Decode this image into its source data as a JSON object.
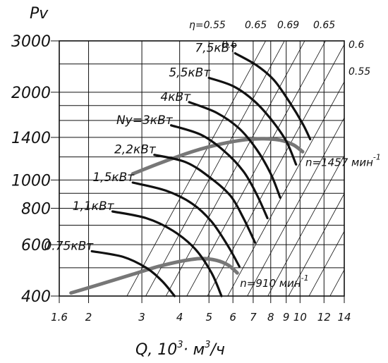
{
  "chart_data": {
    "type": "line",
    "title": "",
    "ylabel": "Pv",
    "xlabel": "Q, 10³· м³/ч",
    "xlabel_parts": {
      "q": "Q, 10",
      "exp": "3",
      "mid": "· м",
      "exp2": "3",
      "tail": "/ч"
    },
    "x_scale": "log",
    "y_scale": "log",
    "xlim": [
      1.6,
      14
    ],
    "ylim": [
      400,
      3000
    ],
    "x_ticks": [
      {
        "label": "1.6",
        "value": 1.6
      },
      {
        "label": "2",
        "value": 2
      },
      {
        "label": "3",
        "value": 3
      },
      {
        "label": "4",
        "value": 4
      },
      {
        "label": "5",
        "value": 5
      },
      {
        "label": "6",
        "value": 6
      },
      {
        "label": "7",
        "value": 7
      },
      {
        "label": "8",
        "value": 8
      },
      {
        "label": "9",
        "value": 9
      },
      {
        "label": "10",
        "value": 10
      },
      {
        "label": "12",
        "value": 12
      },
      {
        "label": "14",
        "value": 14
      }
    ],
    "y_ticks": [
      {
        "label": "400",
        "value": 400
      },
      {
        "label": "600",
        "value": 600
      },
      {
        "label": "800",
        "value": 800
      },
      {
        "label": "1000",
        "value": 1000
      },
      {
        "label": "1400",
        "value": 1400
      },
      {
        "label": "2000",
        "value": 2000
      },
      {
        "label": "3000",
        "value": 3000
      }
    ],
    "grid": true,
    "speed_series": [
      {
        "name": "n=1457 мин",
        "exp": "-1",
        "points": [
          [
            2.8,
            1050
          ],
          [
            3.5,
            1150
          ],
          [
            4.5,
            1260
          ],
          [
            5.5,
            1330
          ],
          [
            6.6,
            1375
          ],
          [
            7.6,
            1385
          ],
          [
            8.6,
            1370
          ],
          [
            9.5,
            1320
          ],
          [
            10.2,
            1250
          ]
        ]
      },
      {
        "name": "n=910 мин",
        "exp": "-1",
        "points": [
          [
            1.75,
            410
          ],
          [
            2.2,
            440
          ],
          [
            2.8,
            475
          ],
          [
            3.4,
            505
          ],
          [
            4.1,
            528
          ],
          [
            4.7,
            538
          ],
          [
            5.3,
            530
          ],
          [
            5.8,
            510
          ],
          [
            6.2,
            480
          ]
        ]
      }
    ],
    "power_series": [
      {
        "name": "7,5кВт",
        "points": [
          [
            6.1,
            2720
          ],
          [
            7.2,
            2470
          ],
          [
            8.2,
            2200
          ],
          [
            9.2,
            1860
          ],
          [
            10.2,
            1560
          ],
          [
            10.8,
            1380
          ]
        ]
      },
      {
        "name": "5,5кВт",
        "points": [
          [
            5.0,
            2240
          ],
          [
            6.0,
            2100
          ],
          [
            7.0,
            1880
          ],
          [
            8.0,
            1620
          ],
          [
            9.0,
            1360
          ],
          [
            9.7,
            1130
          ]
        ]
      },
      {
        "name": "4кВт",
        "points": [
          [
            4.3,
            1850
          ],
          [
            5.3,
            1700
          ],
          [
            6.3,
            1500
          ],
          [
            7.2,
            1270
          ],
          [
            8.0,
            1050
          ],
          [
            8.6,
            870
          ]
        ]
      },
      {
        "name": "Ny=3кВт",
        "points": [
          [
            3.75,
            1540
          ],
          [
            4.7,
            1430
          ],
          [
            5.6,
            1260
          ],
          [
            6.5,
            1070
          ],
          [
            7.2,
            890
          ],
          [
            7.8,
            740
          ]
        ]
      },
      {
        "name": "2,2кВт",
        "points": [
          [
            3.3,
            1220
          ],
          [
            4.2,
            1150
          ],
          [
            5.1,
            1010
          ],
          [
            5.9,
            880
          ],
          [
            6.5,
            740
          ],
          [
            7.1,
            610
          ]
        ]
      },
      {
        "name": "1,5кВт",
        "points": [
          [
            2.8,
            980
          ],
          [
            3.6,
            920
          ],
          [
            4.4,
            830
          ],
          [
            5.1,
            720
          ],
          [
            5.8,
            590
          ],
          [
            6.3,
            505
          ]
        ]
      },
      {
        "name": "1,1кВт",
        "points": [
          [
            2.4,
            780
          ],
          [
            3.1,
            740
          ],
          [
            3.8,
            670
          ],
          [
            4.5,
            580
          ],
          [
            5.1,
            480
          ],
          [
            5.5,
            400
          ]
        ]
      },
      {
        "name": "0.75кВт",
        "points": [
          [
            2.05,
            570
          ],
          [
            2.6,
            545
          ],
          [
            3.1,
            500
          ],
          [
            3.5,
            450
          ],
          [
            3.85,
            400
          ]
        ]
      }
    ],
    "efficiency_labels": [
      "η=0.55",
      "0.65",
      "0.69",
      "0.65",
      "0.6",
      "0.6",
      "0.55"
    ]
  }
}
